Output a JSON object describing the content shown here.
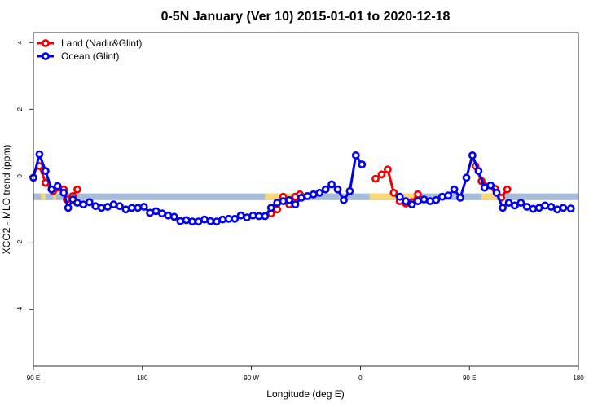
{
  "chart_data": {
    "type": "line",
    "title": "0-5N January (Ver 10)   2015-01-01 to 2020-12-18",
    "xlabel": "Longitude (deg E)",
    "ylabel": "XCO2 - MLO trend (ppm)",
    "xlim": [
      0,
      360
    ],
    "ylim": [
      -5.7,
      4.3
    ],
    "x_ticks": [
      {
        "value": 0,
        "label": "90 E"
      },
      {
        "value": 72,
        "label": "180"
      },
      {
        "value": 144,
        "label": "90 W"
      },
      {
        "value": 216,
        "label": "0"
      },
      {
        "value": 288,
        "label": "90 E"
      },
      {
        "value": 360,
        "label": "180"
      }
    ],
    "y_ticks": [
      {
        "value": -4,
        "label": "-4"
      },
      {
        "value": -2,
        "label": "-2"
      },
      {
        "value": 0,
        "label": "0"
      },
      {
        "value": 2,
        "label": "2"
      },
      {
        "value": 4,
        "label": "4"
      }
    ],
    "surface_band": {
      "y_range": [
        -0.72,
        -0.52
      ],
      "ocean_color": "#a6bcd9",
      "land_color": "#fad67a",
      "land_segments": [
        [
          5,
          8
        ],
        [
          13,
          15
        ],
        [
          153,
          170
        ],
        [
          222,
          253
        ],
        [
          296,
          306
        ]
      ]
    },
    "legend": {
      "position": "top-left",
      "entries": [
        {
          "name": "Land (Nadir&Glint)",
          "color": "#ee0000"
        },
        {
          "name": "Ocean (Glint)",
          "color": "#0000ee"
        }
      ]
    },
    "series": [
      {
        "name": "Land (Nadir&Glint)",
        "color": "#ee0000",
        "segments": [
          [
            [
              4,
              0.3
            ],
            [
              8,
              -0.2
            ],
            [
              13,
              -0.45
            ],
            [
              20,
              -0.4
            ],
            [
              22,
              -0.7
            ],
            [
              26,
              -0.6
            ],
            [
              29,
              -0.4
            ]
          ],
          [
            [
              157,
              -1.12
            ],
            [
              161,
              -1.0
            ],
            [
              165,
              -0.62
            ],
            [
              169,
              -0.85
            ],
            [
              173,
              -0.62
            ],
            [
              176,
              -0.55
            ]
          ],
          [
            [
              226,
              -0.08
            ],
            [
              230,
              0.05
            ],
            [
              234,
              0.2
            ],
            [
              238,
              -0.5
            ],
            [
              242,
              -0.75
            ],
            [
              246,
              -0.82
            ],
            [
              250,
              -0.78
            ],
            [
              254,
              -0.55
            ]
          ],
          [
            [
              292,
              0.3
            ],
            [
              296,
              -0.15
            ],
            [
              305,
              -0.38
            ],
            [
              309,
              -0.65
            ],
            [
              313,
              -0.4
            ]
          ]
        ]
      },
      {
        "name": "Ocean (Glint)",
        "color": "#0000ee",
        "segments": [
          [
            [
              0,
              -0.05
            ],
            [
              4,
              0.65
            ],
            [
              8,
              0.15
            ],
            [
              12,
              -0.4
            ],
            [
              16,
              -0.3
            ],
            [
              20,
              -0.5
            ],
            [
              23,
              -0.95
            ],
            [
              26,
              -0.7
            ],
            [
              29,
              -0.8
            ],
            [
              33,
              -0.85
            ],
            [
              37,
              -0.78
            ],
            [
              41,
              -0.9
            ],
            [
              45,
              -0.95
            ],
            [
              49,
              -0.92
            ],
            [
              53,
              -0.85
            ],
            [
              57,
              -0.9
            ],
            [
              61,
              -1.0
            ],
            [
              65,
              -0.95
            ],
            [
              69,
              -0.95
            ],
            [
              73,
              -0.92
            ],
            [
              77,
              -1.1
            ],
            [
              81,
              -1.05
            ],
            [
              85,
              -1.12
            ],
            [
              89,
              -1.18
            ],
            [
              93,
              -1.22
            ],
            [
              97,
              -1.35
            ],
            [
              101,
              -1.32
            ],
            [
              105,
              -1.36
            ],
            [
              109,
              -1.36
            ],
            [
              113,
              -1.3
            ],
            [
              117,
              -1.35
            ],
            [
              121,
              -1.36
            ],
            [
              125,
              -1.3
            ],
            [
              129,
              -1.28
            ],
            [
              133,
              -1.28
            ],
            [
              137,
              -1.18
            ],
            [
              141,
              -1.24
            ],
            [
              145,
              -1.18
            ],
            [
              149,
              -1.2
            ],
            [
              153,
              -1.2
            ],
            [
              157,
              -0.95
            ],
            [
              161,
              -0.8
            ],
            [
              165,
              -0.75
            ],
            [
              169,
              -0.72
            ],
            [
              173,
              -0.85
            ],
            [
              177,
              -0.65
            ],
            [
              181,
              -0.6
            ],
            [
              185,
              -0.55
            ],
            [
              189,
              -0.5
            ],
            [
              193,
              -0.4
            ],
            [
              197,
              -0.25
            ],
            [
              201,
              -0.4
            ],
            [
              205,
              -0.72
            ],
            [
              209,
              -0.45
            ],
            [
              213,
              0.62
            ],
            [
              217,
              0.35
            ]
          ],
          [
            [
              242,
              -0.62
            ],
            [
              246,
              -0.75
            ],
            [
              250,
              -0.85
            ],
            [
              254,
              -0.75
            ],
            [
              258,
              -0.7
            ],
            [
              262,
              -0.75
            ],
            [
              266,
              -0.72
            ],
            [
              270,
              -0.62
            ],
            [
              274,
              -0.58
            ],
            [
              278,
              -0.4
            ],
            [
              282,
              -0.65
            ],
            [
              286,
              -0.05
            ],
            [
              290,
              0.62
            ],
            [
              294,
              0.15
            ],
            [
              298,
              -0.35
            ],
            [
              302,
              -0.28
            ],
            [
              306,
              -0.5
            ],
            [
              310,
              -0.95
            ],
            [
              314,
              -0.8
            ],
            [
              318,
              -0.88
            ],
            [
              322,
              -0.8
            ],
            [
              326,
              -0.92
            ],
            [
              330,
              -0.98
            ],
            [
              334,
              -0.95
            ],
            [
              338,
              -0.88
            ],
            [
              342,
              -0.92
            ],
            [
              346,
              -1.0
            ],
            [
              350,
              -0.95
            ],
            [
              355,
              -0.97
            ]
          ]
        ]
      }
    ]
  }
}
